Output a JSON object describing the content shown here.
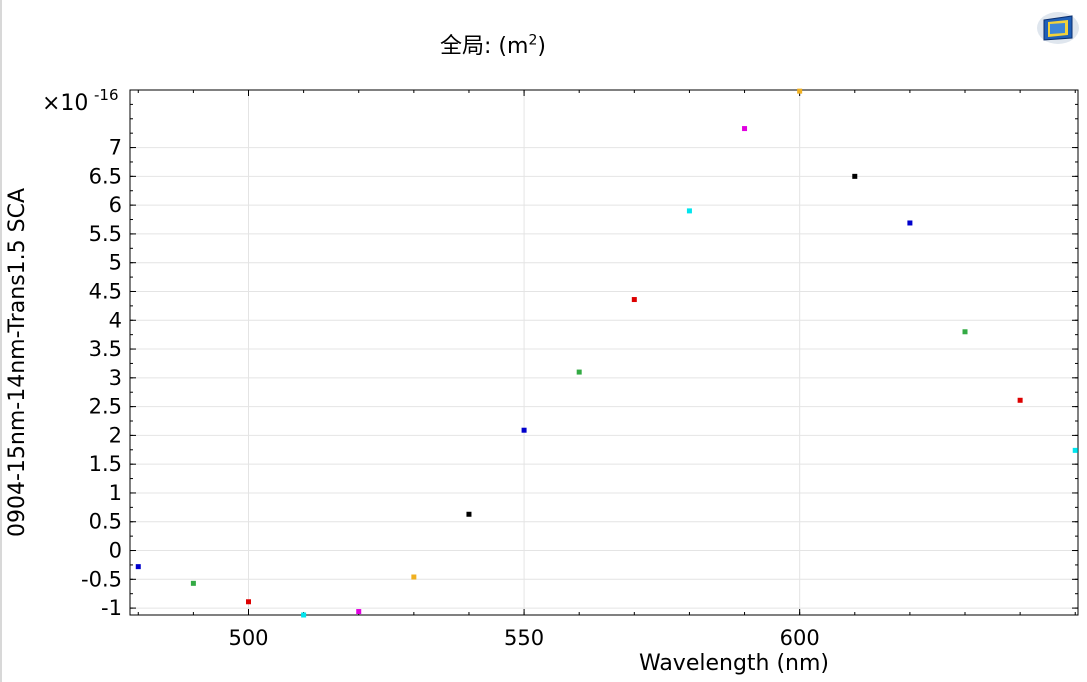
{
  "title_prefix": "全局:",
  "title_unit_open": "(m",
  "title_unit_sup": "2",
  "title_unit_close": ")",
  "chart_data": {
    "type": "scatter",
    "title": "全局: (m²)",
    "xlabel": "Wavelength (nm)",
    "ylabel": "0904-15nm-14nm-Trans1.5 SCA",
    "y_exponent_label": "×10",
    "y_exponent_sup": "-16",
    "xlim": [
      478.5,
      650.5
    ],
    "ylim": [
      -1.12,
      8.0
    ],
    "x_ticks": [
      500,
      550,
      600
    ],
    "x_tick_labels": [
      "500",
      "550",
      "600"
    ],
    "y_ticks": [
      -1,
      -0.5,
      0,
      0.5,
      1,
      1.5,
      2,
      2.5,
      3,
      3.5,
      4,
      4.5,
      5,
      5.5,
      6,
      6.5,
      7
    ],
    "y_tick_labels": [
      "-1",
      "-0.5",
      "0",
      "0.5",
      "1",
      "1.5",
      "2",
      "2.5",
      "3",
      "3.5",
      "4",
      "4.5",
      "5",
      "5.5",
      "6",
      "6.5",
      "7"
    ],
    "grid": true,
    "legend": "none",
    "points": [
      {
        "x": 480,
        "y": -0.28,
        "color": "#0000cc"
      },
      {
        "x": 490,
        "y": -0.57,
        "color": "#33aa44"
      },
      {
        "x": 500,
        "y": -0.89,
        "color": "#dd0000"
      },
      {
        "x": 510,
        "y": -1.12,
        "color": "#00e5ee"
      },
      {
        "x": 520,
        "y": -1.06,
        "color": "#e000e0"
      },
      {
        "x": 530,
        "y": -0.46,
        "color": "#f0b020"
      },
      {
        "x": 540,
        "y": 0.63,
        "color": "#000000"
      },
      {
        "x": 550,
        "y": 2.09,
        "color": "#0000cc"
      },
      {
        "x": 560,
        "y": 3.1,
        "color": "#33aa44"
      },
      {
        "x": 570,
        "y": 4.36,
        "color": "#dd0000"
      },
      {
        "x": 580,
        "y": 5.9,
        "color": "#00e5ee"
      },
      {
        "x": 590,
        "y": 7.33,
        "color": "#e000e0"
      },
      {
        "x": 600,
        "y": 7.98,
        "color": "#f0b020"
      },
      {
        "x": 610,
        "y": 6.5,
        "color": "#000000"
      },
      {
        "x": 620,
        "y": 5.69,
        "color": "#0000cc"
      },
      {
        "x": 630,
        "y": 3.8,
        "color": "#33aa44"
      },
      {
        "x": 640,
        "y": 2.61,
        "color": "#dd0000"
      },
      {
        "x": 650,
        "y": 1.74,
        "color": "#00e5ee"
      }
    ]
  }
}
